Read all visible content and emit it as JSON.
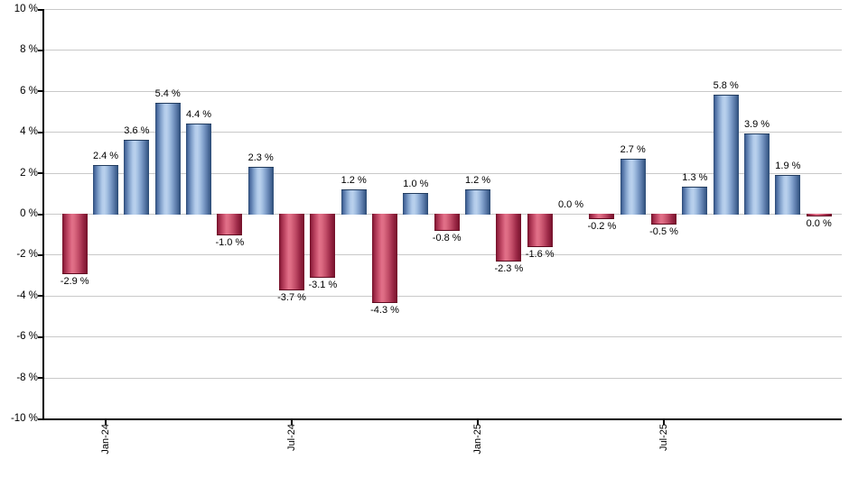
{
  "chart_data": {
    "type": "bar",
    "title": "",
    "xlabel": "",
    "ylabel": "",
    "ylim": [
      -10,
      10
    ],
    "y_tick_step": 2,
    "grid": "horizontal-only",
    "legend": "none",
    "y_ticks": [
      {
        "value": 10,
        "label": "10 %"
      },
      {
        "value": 8,
        "label": "8 %"
      },
      {
        "value": 6,
        "label": "6 %"
      },
      {
        "value": 4,
        "label": "4 %"
      },
      {
        "value": 2,
        "label": "2 %"
      },
      {
        "value": 0,
        "label": "0 %"
      },
      {
        "value": -2,
        "label": "-2 %"
      },
      {
        "value": -4,
        "label": "-4 %"
      },
      {
        "value": -6,
        "label": "-6 %"
      },
      {
        "value": -8,
        "label": "-8 %"
      },
      {
        "value": -10,
        "label": "-10 %"
      }
    ],
    "x_ticks": [
      {
        "label": "Jan-24",
        "bar_index": 1
      },
      {
        "label": "Jul-24",
        "bar_index": 7
      },
      {
        "label": "Jan-25",
        "bar_index": 13
      },
      {
        "label": "Jul-25",
        "bar_index": 19
      }
    ],
    "bars": [
      {
        "value": -2.9,
        "label": "-2.9 %",
        "color": "negative",
        "label_side": "below"
      },
      {
        "value": 2.4,
        "label": "2.4 %",
        "color": "positive",
        "label_side": "above"
      },
      {
        "value": 3.6,
        "label": "3.6 %",
        "color": "positive",
        "label_side": "above"
      },
      {
        "value": 5.4,
        "label": "5.4 %",
        "color": "positive",
        "label_side": "above"
      },
      {
        "value": 4.4,
        "label": "4.4 %",
        "color": "positive",
        "label_side": "above"
      },
      {
        "value": -1.0,
        "label": "-1.0 %",
        "color": "negative",
        "label_side": "below"
      },
      {
        "value": 2.3,
        "label": "2.3 %",
        "color": "positive",
        "label_side": "above"
      },
      {
        "value": -3.7,
        "label": "-3.7 %",
        "color": "negative",
        "label_side": "below"
      },
      {
        "value": -3.1,
        "label": "-3.1 %",
        "color": "negative",
        "label_side": "below"
      },
      {
        "value": 1.2,
        "label": "1.2 %",
        "color": "positive",
        "label_side": "above"
      },
      {
        "value": -4.3,
        "label": "-4.3 %",
        "color": "negative",
        "label_side": "below"
      },
      {
        "value": 1.0,
        "label": "1.0 %",
        "color": "positive",
        "label_side": "above"
      },
      {
        "value": -0.8,
        "label": "-0.8 %",
        "color": "negative",
        "label_side": "below"
      },
      {
        "value": 1.2,
        "label": "1.2 %",
        "color": "positive",
        "label_side": "above"
      },
      {
        "value": -2.3,
        "label": "-2.3 %",
        "color": "negative",
        "label_side": "below"
      },
      {
        "value": -1.6,
        "label": "-1.6 %",
        "color": "negative",
        "label_side": "below"
      },
      {
        "value": 0.0,
        "label": "0.0 %",
        "color": "none",
        "label_side": "above"
      },
      {
        "value": -0.2,
        "label": "-0.2 %",
        "color": "negative",
        "label_side": "below"
      },
      {
        "value": 2.7,
        "label": "2.7 %",
        "color": "positive",
        "label_side": "above"
      },
      {
        "value": -0.5,
        "label": "-0.5 %",
        "color": "negative",
        "label_side": "below"
      },
      {
        "value": 1.3,
        "label": "1.3 %",
        "color": "positive",
        "label_side": "above"
      },
      {
        "value": 5.8,
        "label": "5.8 %",
        "color": "positive",
        "label_side": "above"
      },
      {
        "value": 3.9,
        "label": "3.9 %",
        "color": "positive",
        "label_side": "above"
      },
      {
        "value": 1.9,
        "label": "1.9 %",
        "color": "positive",
        "label_side": "above"
      },
      {
        "value": 0.0,
        "label": "0.0 %",
        "color": "negative",
        "label_side": "below",
        "sliver": true
      }
    ],
    "colors": {
      "positive_dark": "#2b4a74",
      "positive_light": "#bad1ed",
      "negative_dark": "#731029",
      "negative_light": "#e27089",
      "grid": "#c9c9c9",
      "axis": "#000000",
      "label_text": "#000000",
      "background": "#ffffff"
    }
  }
}
